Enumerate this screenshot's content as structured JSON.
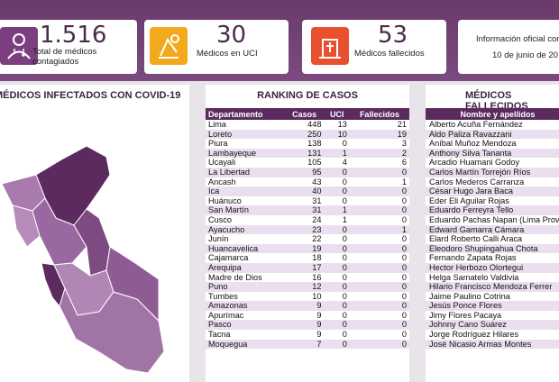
{
  "cards": {
    "contagiados": {
      "value": "1.516",
      "label": "Total de médicos contagiados"
    },
    "uci": {
      "value": "30",
      "label": "Médicos en UCI"
    },
    "fallecidos": {
      "value": "53",
      "label": "Médicos fallecidos"
    },
    "info": {
      "title": "Información oficial con",
      "date": "10 de junio de 20"
    }
  },
  "map_panel": {
    "title": "MÉDICOS INFECTADOS CON COVID-19"
  },
  "ranking": {
    "title": "RANKING DE CASOS",
    "headers": [
      "Departamento",
      "Casos",
      "UCI",
      "Fallecidos"
    ],
    "rows": [
      [
        "Lima",
        "448",
        "13",
        "21"
      ],
      [
        "Loreto",
        "250",
        "10",
        "19"
      ],
      [
        "Piura",
        "138",
        "0",
        "3"
      ],
      [
        "Lambayeque",
        "131",
        "1",
        "2"
      ],
      [
        "Ucayali",
        "105",
        "4",
        "6"
      ],
      [
        "La Libertad",
        "95",
        "0",
        "0"
      ],
      [
        "Ancash",
        "43",
        "0",
        "1"
      ],
      [
        "Ica",
        "40",
        "0",
        "0"
      ],
      [
        "Huánuco",
        "31",
        "0",
        "0"
      ],
      [
        "San Martín",
        "31",
        "1",
        "0"
      ],
      [
        "Cusco",
        "24",
        "1",
        "0"
      ],
      [
        "Ayacucho",
        "23",
        "0",
        "1"
      ],
      [
        "Junín",
        "22",
        "0",
        "0"
      ],
      [
        "Huancavelica",
        "19",
        "0",
        "0"
      ],
      [
        "Cajamarca",
        "18",
        "0",
        "0"
      ],
      [
        "Arequipa",
        "17",
        "0",
        "0"
      ],
      [
        "Madre de Dios",
        "16",
        "0",
        "0"
      ],
      [
        "Puno",
        "12",
        "0",
        "0"
      ],
      [
        "Tumbes",
        "10",
        "0",
        "0"
      ],
      [
        "Amazonas",
        "9",
        "0",
        "0"
      ],
      [
        "Apurímac",
        "9",
        "0",
        "0"
      ],
      [
        "Pasco",
        "9",
        "0",
        "0"
      ],
      [
        "Tacna",
        "9",
        "0",
        "0"
      ],
      [
        "Moquegua",
        "7",
        "0",
        "0"
      ]
    ]
  },
  "fallecidos_panel": {
    "title": "MÉDICOS FALLECIDOS",
    "header": "Nombre y apellidos",
    "names": [
      "Alberto Acuña Fernández",
      "Aldo Paliza Ravazzani",
      "Aníbal Muñoz Mendoza",
      "Anthony Silva Tananta",
      "Arcadio Huamani Godoy",
      "Carlos Martín Torrejón Ríos",
      "Carlos Mederos Carranza",
      "César Hugo Jara Baca",
      "Eder Eli Aguilar Rojas",
      "Eduardo Ferreyra Tello",
      "Eduardo Pachas Napan (Lima Prov",
      "Edward Gamarra Cámara",
      "Elard Roberto Calli Araca",
      "Eleodoro Shupingahua Chota",
      "Fernando Zapata Rojas",
      "Hector Herbozo Olortegui",
      "Helga Samatelo Valdivia",
      "Hilario Francisco Mendoza Ferrer",
      "Jaime Paulino Cotrina",
      "Jesús Ponce Flores",
      "Jimy Flores Pacaya",
      "Johnny Cano Suárez",
      "Jorge Rodríguez Hilares",
      "José Nicasio Armas Montes"
    ]
  },
  "colors": {
    "accent": "#5b2a5e",
    "uci": "#f2a91c",
    "fallecidos": "#e8502e"
  },
  "icons": [
    "doctor-icon",
    "hospital-bed-icon",
    "grave-cross-icon"
  ]
}
